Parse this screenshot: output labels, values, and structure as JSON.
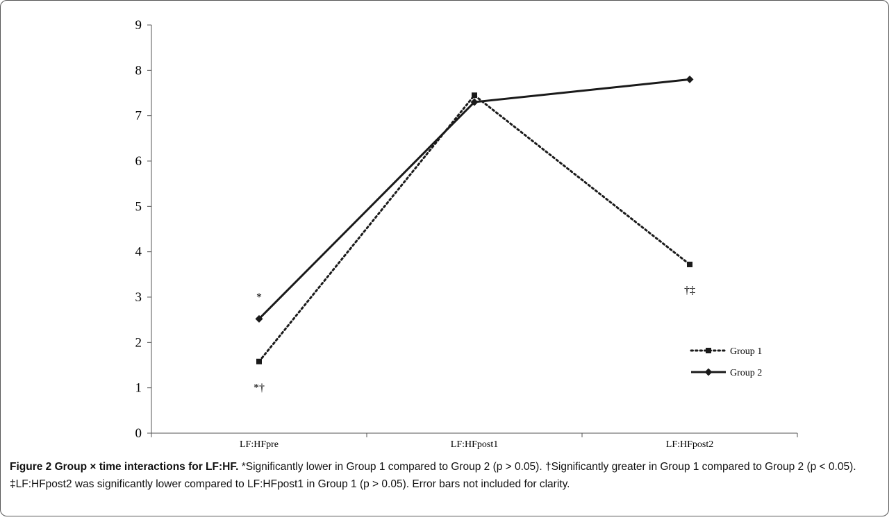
{
  "chart_data": {
    "type": "line",
    "categories": [
      "LF:HFpre",
      "LF:HFpost1",
      "LF:HFpost2"
    ],
    "series": [
      {
        "name": "Group 1",
        "values": [
          1.58,
          7.45,
          3.72
        ],
        "style": "dotted",
        "marker": "square",
        "color": "#1a1a1a"
      },
      {
        "name": "Group 2",
        "values": [
          2.52,
          7.3,
          7.8
        ],
        "style": "solid",
        "marker": "diamond",
        "color": "#1a1a1a"
      }
    ],
    "ylim": [
      0,
      9
    ],
    "yticks": [
      0,
      1,
      2,
      3,
      4,
      5,
      6,
      7,
      8,
      9
    ],
    "grid": false,
    "legend_position": "right",
    "annotations": [
      {
        "text": "*",
        "category": "LF:HFpre",
        "y": 3.0
      },
      {
        "text": "*†",
        "category": "LF:HFpre",
        "y": 1.0
      },
      {
        "text": "†‡",
        "category": "LF:HFpost2",
        "y": 3.15
      }
    ]
  },
  "caption": {
    "label": "Figure 2 Group × time interactions for LF:HF.",
    "text": " *Significantly lower in Group 1 compared to Group 2 (p > 0.05). †Significantly greater in Group 1 compared to Group 2 (p < 0.05). ‡LF:HFpost2 was significantly lower compared to LF:HFpost1 in Group 1 (p > 0.05). Error bars not included for clarity."
  }
}
